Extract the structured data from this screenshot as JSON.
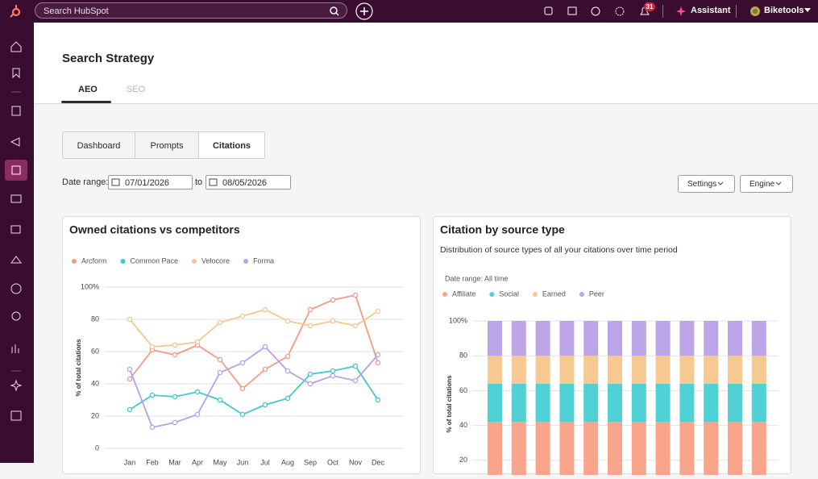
{
  "topbar": {
    "search_placeholder": "Search HubSpot",
    "notifications": "31",
    "assistant": "Assistant",
    "account": "Biketools"
  },
  "header": {
    "title": "Search Strategy",
    "tabs": [
      "AEO",
      "SEO"
    ]
  },
  "subtabs": [
    "Dashboard",
    "Prompts",
    "Citations"
  ],
  "filters": {
    "date_label": "Date range:",
    "start": "07/01/2026",
    "separator": "to",
    "end": "08/05/2026",
    "buttons": [
      "Settings",
      "Engine"
    ]
  },
  "chart_data": [
    {
      "type": "line",
      "title": "Owned citations vs competitors",
      "y_label": "% of total citations",
      "categories": [
        "Jan",
        "Feb",
        "Mar",
        "Apr",
        "May",
        "Jun",
        "Jul",
        "Aug",
        "Sep",
        "Oct",
        "Nov",
        "Dec"
      ],
      "series": [
        {
          "name": "Arcform",
          "color": "#f59a82",
          "values": [
            43,
            61,
            58,
            64,
            55,
            37,
            49,
            57,
            86,
            92,
            95,
            53
          ]
        },
        {
          "name": "Common Pace",
          "color": "#3fc8d0",
          "values": [
            24,
            33,
            32,
            35,
            30,
            21,
            27,
            31,
            46,
            48,
            51,
            30
          ]
        },
        {
          "name": "Velocore",
          "color": "#f6c590",
          "values": [
            80,
            63,
            64,
            66,
            78,
            82,
            86,
            79,
            76,
            79,
            76,
            85
          ]
        },
        {
          "name": "Forma",
          "color": "#b9a0e8",
          "values": [
            49,
            13,
            16,
            21,
            47,
            53,
            63,
            48,
            40,
            45,
            42,
            58
          ]
        }
      ],
      "ylim": [
        0,
        100
      ],
      "yticks": [
        0,
        20,
        40,
        60,
        80,
        {
          "value": 100,
          "label": "100%"
        }
      ],
      "grid": true,
      "legend": "top"
    },
    {
      "type": "bar",
      "stacked": true,
      "title": "Citation by source type",
      "subtitle": "Distribution of source types of all your citations over time period",
      "annotation": "Date range: All time",
      "y_label": "% of total citations",
      "categories": [
        null,
        null,
        null,
        null,
        null,
        null,
        null,
        null,
        null,
        null,
        null,
        null
      ],
      "series": [
        {
          "name": "Affiliate",
          "color": "#f9a58c",
          "values": [
            42,
            42,
            42,
            42,
            42,
            42,
            42,
            42,
            42,
            42,
            42,
            42
          ]
        },
        {
          "name": "Social",
          "color": "#4fd1d6",
          "values": [
            22,
            22,
            22,
            22,
            22,
            22,
            22,
            22,
            22,
            22,
            22,
            22
          ]
        },
        {
          "name": "Earned",
          "color": "#f6c892",
          "values": [
            16,
            16,
            16,
            16,
            16,
            16,
            16,
            16,
            16,
            16,
            16,
            16
          ]
        },
        {
          "name": "Peer",
          "color": "#bca6e8",
          "values": [
            20,
            20,
            20,
            20,
            20,
            20,
            20,
            20,
            20,
            20,
            20,
            20
          ]
        }
      ],
      "ylim": [
        0,
        100
      ],
      "yticks": [
        20,
        40,
        60,
        80,
        {
          "value": 100,
          "label": "100%"
        }
      ],
      "grid": true,
      "legend": "top"
    }
  ]
}
